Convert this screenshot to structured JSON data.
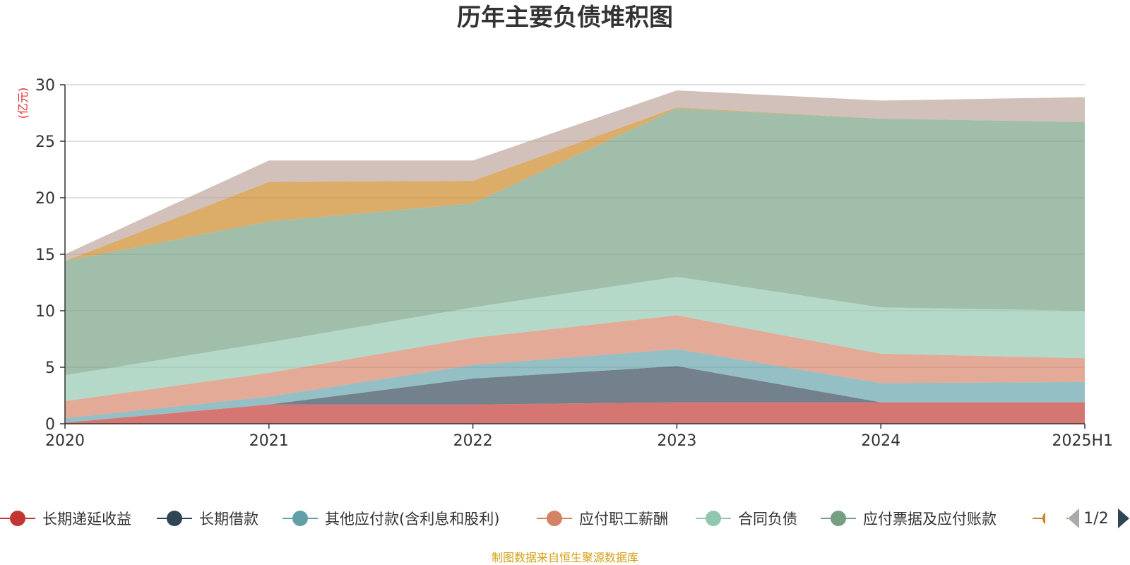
{
  "chart_data": {
    "type": "area",
    "stacked": true,
    "title": "历年主要负债堆积图",
    "unit_label": "(亿元)",
    "categories": [
      "2020",
      "2021",
      "2022",
      "2023",
      "2024",
      "2025H1"
    ],
    "ylim": [
      0,
      30
    ],
    "yticks": [
      0,
      5,
      10,
      15,
      20,
      25,
      30
    ],
    "grid": true,
    "series": [
      {
        "name": "长期递延收益",
        "color": "#c23531",
        "values": [
          0.1,
          1.7,
          1.7,
          1.9,
          1.9,
          1.9
        ]
      },
      {
        "name": "长期借款",
        "color": "#2f4554",
        "values": [
          0.0,
          0.0,
          2.3,
          3.2,
          0.0,
          0.0
        ]
      },
      {
        "name": "其他应付款(含利息和股利)",
        "color": "#61a0a8",
        "values": [
          0.4,
          0.7,
          1.2,
          1.5,
          1.7,
          1.8
        ]
      },
      {
        "name": "应付职工薪酬",
        "color": "#d48265",
        "values": [
          1.5,
          2.1,
          2.4,
          3.0,
          2.6,
          2.1
        ]
      },
      {
        "name": "合同负债",
        "color": "#91c7ae",
        "values": [
          2.3,
          2.7,
          2.7,
          3.4,
          4.1,
          4.2
        ]
      },
      {
        "name": "应付票据及应付账款",
        "color": "#749f83",
        "values": [
          10.1,
          10.7,
          9.2,
          14.9,
          16.7,
          16.7
        ]
      },
      {
        "name": "",
        "color": "#ca8622",
        "values": [
          0.0,
          3.5,
          2.0,
          0.1,
          0.0,
          0.0
        ]
      },
      {
        "name": "",
        "color": "#bda29a",
        "values": [
          0.6,
          1.9,
          1.8,
          1.5,
          1.6,
          2.2
        ]
      }
    ],
    "legend": {
      "position": "bottom",
      "page": "1/2"
    },
    "source_note": "制图数据来自恒生聚源数据库"
  }
}
